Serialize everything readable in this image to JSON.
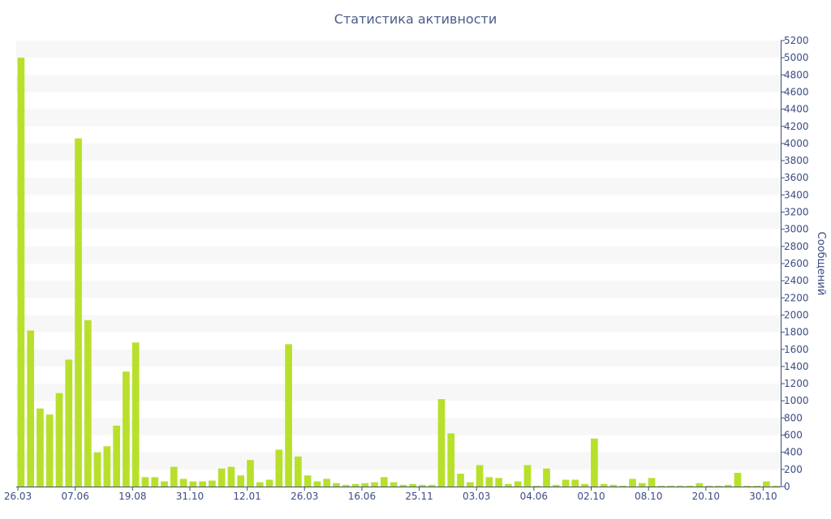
{
  "chart_data": {
    "type": "bar",
    "title": "Статистика активности",
    "xlabel": "",
    "ylabel": "Сообщений",
    "ylim": [
      0,
      5200
    ],
    "y_ticks": [
      0,
      200,
      400,
      600,
      800,
      1000,
      1200,
      1400,
      1600,
      1800,
      2000,
      2200,
      2400,
      2600,
      2800,
      3000,
      3200,
      3400,
      3600,
      3800,
      4000,
      4200,
      4400,
      4600,
      4800,
      5000,
      5200
    ],
    "y_axis_side": "right",
    "x_tick_labels": [
      {
        "label": "26.03",
        "index": 0
      },
      {
        "label": "07.06",
        "index": 6
      },
      {
        "label": "19.08",
        "index": 12
      },
      {
        "label": "31.10",
        "index": 18
      },
      {
        "label": "12.01",
        "index": 24
      },
      {
        "label": "26.03",
        "index": 30
      },
      {
        "label": "16.06",
        "index": 36
      },
      {
        "label": "25.11",
        "index": 42
      },
      {
        "label": "03.03",
        "index": 48
      },
      {
        "label": "04.06",
        "index": 54
      },
      {
        "label": "02.10",
        "index": 60
      },
      {
        "label": "08.10",
        "index": 66
      },
      {
        "label": "20.10",
        "index": 72
      },
      {
        "label": "30.10",
        "index": 78
      }
    ],
    "grid": "horizontal alternating bands",
    "legend": "none",
    "bar_color": "#b8e02b",
    "band_color": "#f7f7f7",
    "axis_color": "#3b4b84",
    "values": [
      5000,
      1820,
      910,
      840,
      1090,
      1480,
      4060,
      1940,
      400,
      470,
      710,
      1340,
      1680,
      110,
      110,
      60,
      230,
      90,
      60,
      60,
      70,
      210,
      230,
      130,
      310,
      50,
      80,
      430,
      1660,
      350,
      130,
      60,
      90,
      40,
      20,
      30,
      40,
      50,
      110,
      50,
      20,
      30,
      20,
      20,
      1020,
      620,
      150,
      50,
      250,
      110,
      100,
      30,
      60,
      250,
      10,
      210,
      20,
      80,
      80,
      30,
      560,
      30,
      20,
      10,
      90,
      40,
      100,
      10,
      10,
      10,
      10,
      40,
      10,
      10,
      20,
      160,
      10,
      10,
      60,
      10
    ]
  }
}
